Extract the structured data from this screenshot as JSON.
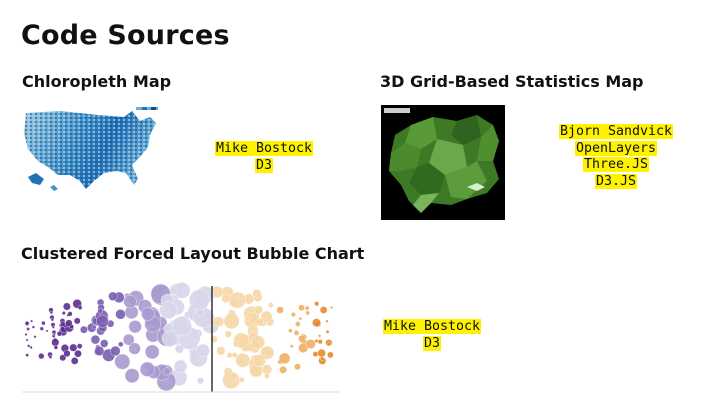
{
  "page": {
    "title": "Code Sources"
  },
  "sections": {
    "choropleth": {
      "heading": "Chloropleth Map",
      "credits": [
        "Mike Bostock",
        "D3"
      ]
    },
    "grid3d": {
      "heading": "3D Grid-Based Statistics Map",
      "credits": [
        "Bjorn Sandvick",
        "OpenLayers",
        "Three.JS",
        "D3.JS"
      ]
    },
    "bubble": {
      "heading": "Clustered Forced Layout Bubble Chart",
      "credits": [
        "Mike Bostock",
        "D3"
      ]
    }
  },
  "colors": {
    "highlight": "#fff200",
    "choropleth_blue": "#1f6bb5",
    "grid_green": "#3e7a26",
    "bubble_purple": "#5b2d8e",
    "bubble_orange": "#e58a2a"
  },
  "icons": {
    "choropleth": "us-choropleth-map-thumbnail",
    "grid3d": "3d-grid-map-thumbnail",
    "bubble": "bubble-chart-thumbnail"
  }
}
